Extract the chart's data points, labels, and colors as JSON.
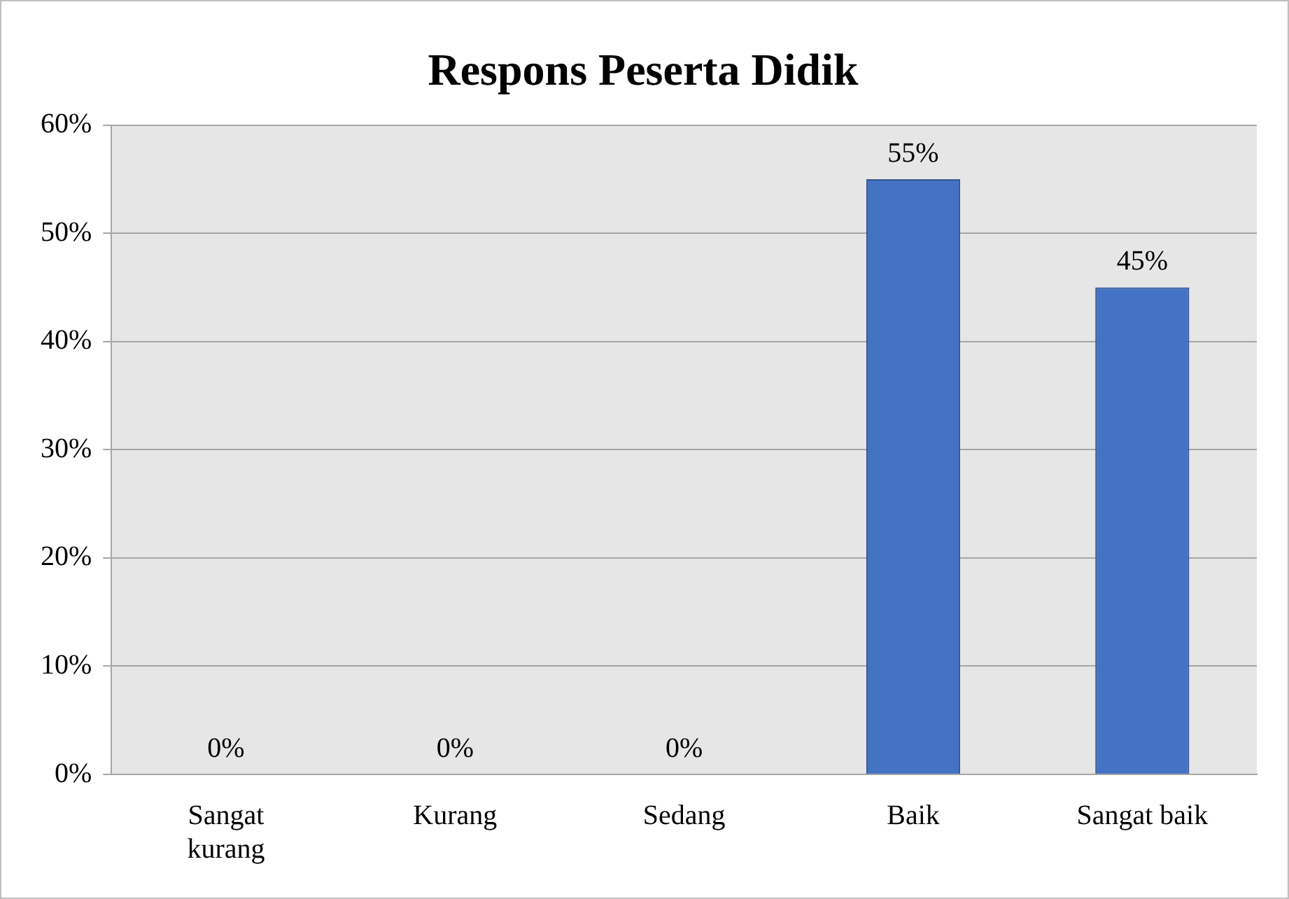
{
  "chart_data": {
    "type": "bar",
    "title": "Respons Peserta Didik",
    "categories": [
      "Sangat kurang",
      "Kurang",
      "Sedang",
      "Baik",
      "Sangat baik"
    ],
    "values": [
      0,
      0,
      0,
      55,
      45
    ],
    "value_labels": [
      "0%",
      "0%",
      "0%",
      "55%",
      "45%"
    ],
    "color": "#4472c4",
    "ylim": [
      0,
      60
    ],
    "yticks": [
      {
        "value": 0,
        "label": "0%"
      },
      {
        "value": 10,
        "label": "10%"
      },
      {
        "value": 20,
        "label": "20%"
      },
      {
        "value": 30,
        "label": "30%"
      },
      {
        "value": 40,
        "label": "40%"
      },
      {
        "value": 50,
        "label": "50%"
      },
      {
        "value": 60,
        "label": "60%"
      }
    ],
    "grid": "y",
    "legend": false
  }
}
